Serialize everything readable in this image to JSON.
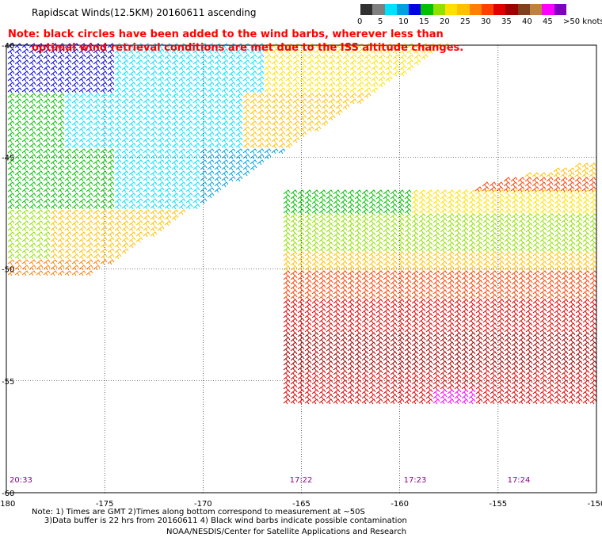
{
  "title": "Rapidscat Winds(12.5KM) 20160611 ascending",
  "note": {
    "line1": "Note: black circles have been added to the wind barbs, wherever less than",
    "line2": "optimal wind retrieval conditions are met due to the ISS altitude changes."
  },
  "legend": {
    "colors": [
      "#303030",
      "#808080",
      "#00e0ff",
      "#00a0e0",
      "#0000e0",
      "#00c000",
      "#90e000",
      "#ffe000",
      "#ffc000",
      "#ff8000",
      "#ff4000",
      "#e00000",
      "#a00000",
      "#804020",
      "#c08040",
      "#ff00ff",
      "#8000c0"
    ],
    "labels": [
      "0",
      "5",
      "10",
      "15",
      "20",
      "25",
      "30",
      "35",
      "40",
      "45",
      ">50 knots"
    ]
  },
  "map": {
    "lon_labels": [
      "-180",
      "-175",
      "-170",
      "-165",
      "-160",
      "-155",
      "-150"
    ],
    "lat_labels": [
      "-40",
      "-45",
      "-50",
      "-55",
      "-60"
    ],
    "time_labels": [
      "20:33",
      "17:22",
      "17:23",
      "17:24"
    ]
  },
  "footnote": {
    "line1": "Note: 1) Times are GMT 2)Times along bottom correspond to measurement at ~50S",
    "line2": "     3)Data buffer is 22 hrs from 20160611 4) Black wind barbs indicate possible contamination"
  },
  "credit": "NOAA/NESDIS/Center for Satellite Applications and Research"
}
